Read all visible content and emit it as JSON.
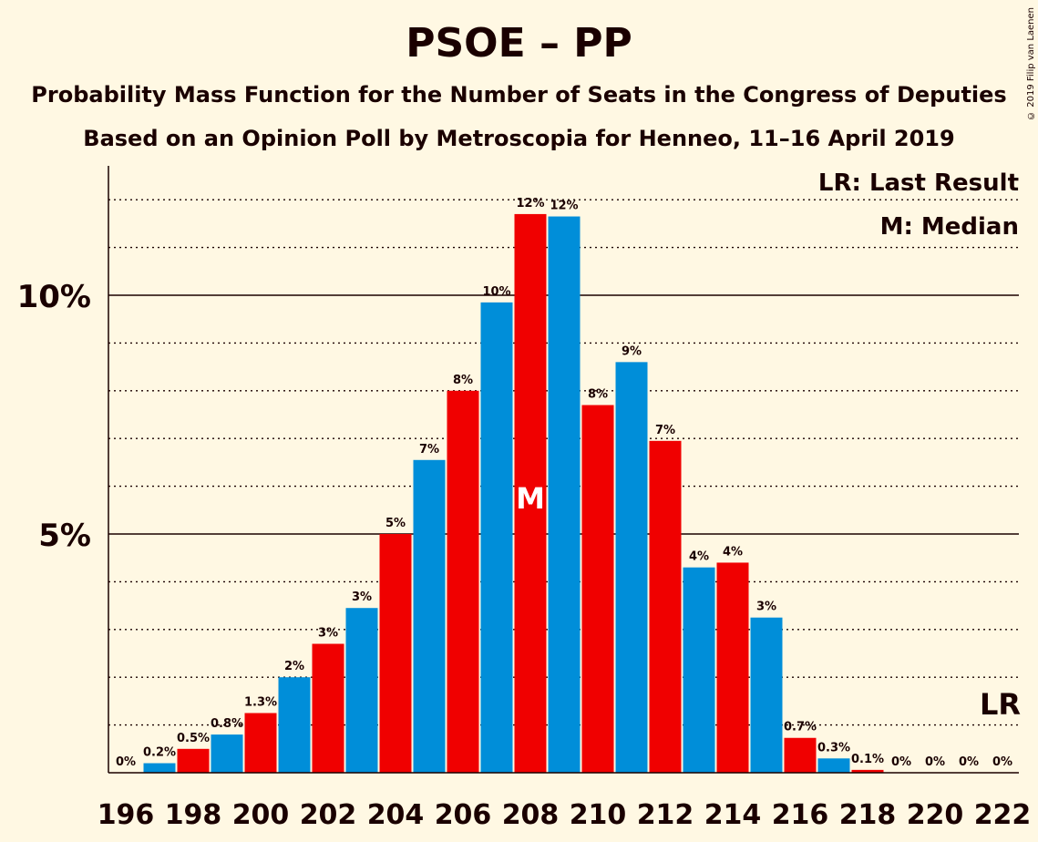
{
  "title": "PSOE – PP",
  "subtitle_1": "Probability Mass Function for the Number of Seats in the Congress of Deputies",
  "subtitle_2": "Based on an Opinion Poll by Metroscopia for Henneo, 11–16 April 2019",
  "copyright": "© 2019 Filip van Laenen",
  "legend": {
    "last_result": "LR: Last Result",
    "median": "M: Median"
  },
  "markers": {
    "median_letter": "M",
    "last_result_letter": "LR"
  },
  "colors": {
    "background": "#FFF8E3",
    "red": "#F00000",
    "blue": "#008ED9",
    "text": "#1a0000"
  },
  "chart_data": {
    "type": "bar",
    "x": [
      196,
      197,
      198,
      199,
      200,
      201,
      202,
      203,
      204,
      205,
      206,
      207,
      208,
      209,
      210,
      211,
      212,
      213,
      214,
      215,
      216,
      217,
      218,
      219,
      220,
      221,
      222
    ],
    "values": [
      0,
      0.2,
      0.5,
      0.8,
      1.25,
      2.0,
      2.7,
      3.45,
      5.0,
      6.55,
      8.0,
      9.85,
      11.7,
      11.65,
      7.7,
      8.6,
      6.95,
      4.3,
      4.4,
      3.25,
      0.73,
      0.3,
      0.06,
      0,
      0,
      0,
      0
    ],
    "value_labels": [
      "0%",
      "0.2%",
      "0.5%",
      "0.8%",
      "1.3%",
      "2%",
      "3%",
      "3%",
      "5%",
      "7%",
      "8%",
      "10%",
      "12%",
      "12%",
      "8%",
      "9%",
      "7%",
      "4%",
      "4%",
      "3%",
      "0.7%",
      "0.3%",
      "0.1%",
      "0%",
      "0%",
      "0%",
      "0%"
    ],
    "bar_colors": [
      "blue",
      "blue",
      "red",
      "blue",
      "red",
      "blue",
      "red",
      "blue",
      "red",
      "blue",
      "red",
      "blue",
      "red",
      "blue",
      "red",
      "blue",
      "red",
      "blue",
      "red",
      "blue",
      "red",
      "blue",
      "red",
      "blue",
      "red",
      "blue",
      "red"
    ],
    "x_tick_labels": [
      "196",
      "198",
      "200",
      "202",
      "204",
      "206",
      "208",
      "210",
      "212",
      "214",
      "216",
      "218",
      "220",
      "222"
    ],
    "y_tick_labels": [
      "5%",
      "10%"
    ],
    "y_ticks": [
      5,
      10
    ],
    "ylim": [
      0,
      12.7
    ],
    "median": 208,
    "last_result": 222,
    "gridlines": "dotted every 1%, solid at 5% and 10%"
  }
}
